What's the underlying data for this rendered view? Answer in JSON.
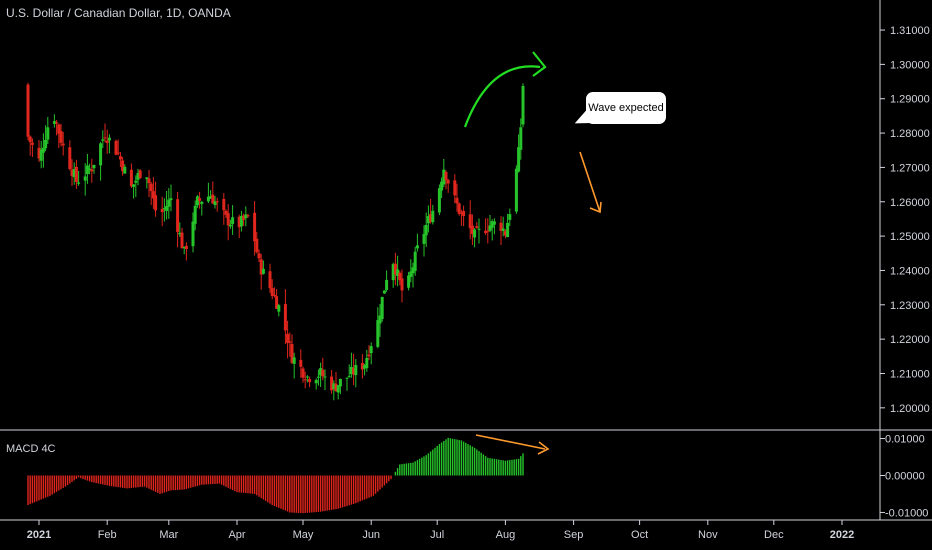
{
  "header": {
    "title": "U.S. Dollar / Canadian Dollar, 1D, OANDA"
  },
  "macd_panel": {
    "label": "MACD 4C"
  },
  "annotation": {
    "callout_text": "Wave expected"
  },
  "colors": {
    "up": "#26c42a",
    "down": "#e0261d",
    "axis_text": "#d1d4dc",
    "arrow_green": "#22dd22",
    "arrow_orange": "#ff9a2e",
    "background": "#000000"
  },
  "chart_data": [
    {
      "type": "candlestick",
      "ylim": [
        1.195,
        1.317
      ],
      "y_ticks": [
        "1.20000",
        "1.21000",
        "1.22000",
        "1.23000",
        "1.24000",
        "1.25000",
        "1.26000",
        "1.27000",
        "1.28000",
        "1.29000",
        "1.30000",
        "1.31000"
      ],
      "y_tick_values": [
        1.2,
        1.21,
        1.22,
        1.23,
        1.24,
        1.25,
        1.26,
        1.27,
        1.28,
        1.29,
        1.3,
        1.31
      ],
      "x_labels": [
        "2021",
        "Feb",
        "Mar",
        "Apr",
        "May",
        "Jun",
        "Jul",
        "Aug",
        "Sep",
        "Oct",
        "Nov",
        "Dec",
        "2022"
      ],
      "x_label_days": [
        0,
        31,
        59,
        90,
        120,
        151,
        181,
        212,
        243,
        273,
        304,
        334,
        365
      ],
      "close_anchors": [
        [
          -5,
          1.279
        ],
        [
          0,
          1.272
        ],
        [
          6,
          1.287
        ],
        [
          11,
          1.276
        ],
        [
          17,
          1.266
        ],
        [
          24,
          1.27
        ],
        [
          30,
          1.28
        ],
        [
          36,
          1.274
        ],
        [
          42,
          1.264
        ],
        [
          48,
          1.271
        ],
        [
          54,
          1.255
        ],
        [
          60,
          1.261
        ],
        [
          66,
          1.245
        ],
        [
          72,
          1.26
        ],
        [
          78,
          1.262
        ],
        [
          85,
          1.255
        ],
        [
          90,
          1.253
        ],
        [
          96,
          1.256
        ],
        [
          100,
          1.242
        ],
        [
          105,
          1.235
        ],
        [
          110,
          1.228
        ],
        [
          115,
          1.215
        ],
        [
          122,
          1.209
        ],
        [
          128,
          1.21
        ],
        [
          134,
          1.206
        ],
        [
          140,
          1.209
        ],
        [
          148,
          1.213
        ],
        [
          154,
          1.225
        ],
        [
          160,
          1.245
        ],
        [
          166,
          1.232
        ],
        [
          172,
          1.246
        ],
        [
          176,
          1.253
        ],
        [
          180,
          1.259
        ],
        [
          184,
          1.27
        ],
        [
          188,
          1.262
        ],
        [
          192,
          1.256
        ],
        [
          198,
          1.25
        ],
        [
          204,
          1.253
        ],
        [
          209,
          1.254
        ],
        [
          212,
          1.251
        ],
        [
          216,
          1.264
        ],
        [
          218,
          1.274
        ],
        [
          219,
          1.282
        ],
        [
          220,
          1.294
        ]
      ],
      "wick": 0.0045
    },
    {
      "type": "histogram",
      "title": "MACD 4C",
      "ylim": [
        -0.0115,
        0.0115
      ],
      "y_ticks": [
        "0.01000",
        "0.00000",
        "-0.01000"
      ],
      "y_tick_values": [
        0.01,
        0.0,
        -0.01
      ],
      "value_anchors": [
        [
          -5,
          -0.008
        ],
        [
          5,
          -0.0055
        ],
        [
          12,
          -0.003
        ],
        [
          18,
          -0.0005
        ],
        [
          24,
          -0.0018
        ],
        [
          32,
          -0.0028
        ],
        [
          40,
          -0.0035
        ],
        [
          48,
          -0.003
        ],
        [
          55,
          -0.005
        ],
        [
          60,
          -0.004
        ],
        [
          66,
          -0.0038
        ],
        [
          74,
          -0.0025
        ],
        [
          82,
          -0.0022
        ],
        [
          90,
          -0.0045
        ],
        [
          98,
          -0.005
        ],
        [
          106,
          -0.008
        ],
        [
          114,
          -0.01
        ],
        [
          120,
          -0.0102
        ],
        [
          128,
          -0.0098
        ],
        [
          136,
          -0.009
        ],
        [
          144,
          -0.0075
        ],
        [
          152,
          -0.0055
        ],
        [
          160,
          -0.001
        ],
        [
          164,
          0.003
        ],
        [
          170,
          0.0035
        ],
        [
          176,
          0.0055
        ],
        [
          182,
          0.0085
        ],
        [
          186,
          0.0102
        ],
        [
          192,
          0.0095
        ],
        [
          198,
          0.0075
        ],
        [
          204,
          0.0048
        ],
        [
          212,
          0.004
        ],
        [
          218,
          0.0045
        ],
        [
          220,
          0.006
        ]
      ]
    }
  ]
}
